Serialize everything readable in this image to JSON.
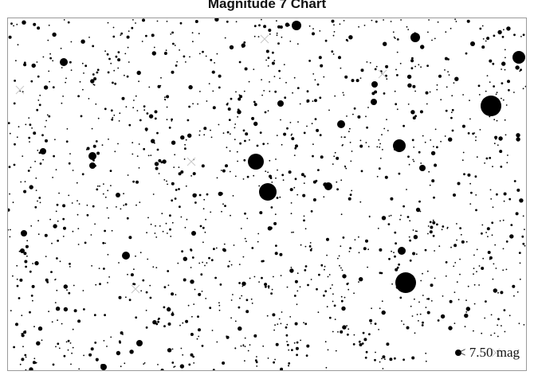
{
  "title": "Magnitude 7 Chart",
  "limit_label": "< 7.50 mag",
  "colors": {
    "star": "#000000",
    "background": "#ffffff",
    "frame": "#9a9a9a",
    "marker": "#c8c8c8"
  }
}
